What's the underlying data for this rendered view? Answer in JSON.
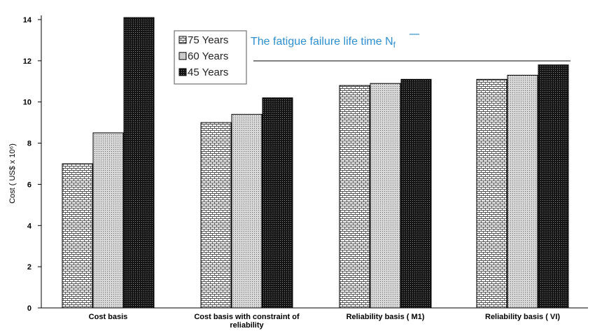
{
  "chart_data": {
    "type": "bar",
    "categories": [
      [
        "Cost basis"
      ],
      [
        "Cost basis with constraint of",
        "reliability"
      ],
      [
        "Reliability basis ( M1)"
      ],
      [
        "Reliability basis ( VI)"
      ]
    ],
    "series": [
      {
        "name": "75 Years",
        "values": [
          7.0,
          9.0,
          10.8,
          11.1
        ]
      },
      {
        "name": "60 Years",
        "values": [
          8.5,
          9.4,
          10.9,
          11.3
        ]
      },
      {
        "name": "45 Years",
        "values": [
          14.1,
          10.2,
          11.1,
          11.8
        ]
      }
    ],
    "ylabel": "Cost ( US$ x 10⁶)",
    "ylim": [
      0,
      14
    ],
    "yticks": [
      0,
      2,
      4,
      6,
      8,
      10,
      12,
      14
    ],
    "grid": false,
    "legend_position": "top-left",
    "annotation": "The fatigue failure life time N",
    "annotation_subscript": "f",
    "colors": {
      "series_fill": [
        "#ffffff",
        "#c8c8c8",
        "#1a1a1a"
      ],
      "annotation": "#2e8fd0"
    }
  }
}
